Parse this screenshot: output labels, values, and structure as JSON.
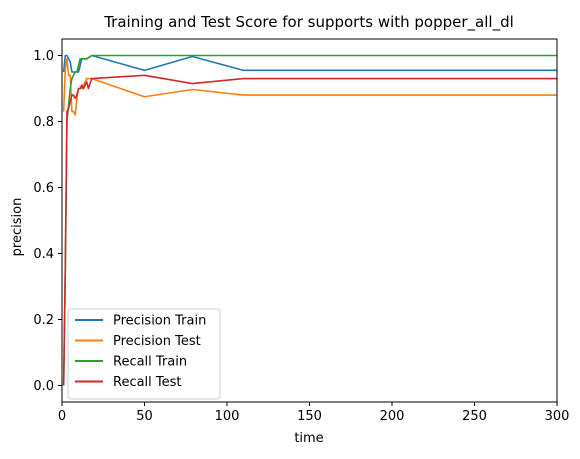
{
  "chart_data": {
    "type": "line",
    "title": "Training and Test Score for supports with popper_all_dl",
    "xlabel": "time",
    "ylabel": "precision",
    "xlim": [
      0,
      300
    ],
    "ylim": [
      -0.05,
      1.05
    ],
    "xticks": [
      0,
      50,
      100,
      150,
      200,
      250,
      300
    ],
    "yticks": [
      0.0,
      0.2,
      0.4,
      0.6,
      0.8,
      1.0
    ],
    "xtick_labels": [
      "0",
      "50",
      "100",
      "150",
      "200",
      "250",
      "300"
    ],
    "ytick_labels": [
      "0.0",
      "0.2",
      "0.4",
      "0.6",
      "0.8",
      "1.0"
    ],
    "grid": false,
    "legend_position": "lower-left",
    "series": [
      {
        "name": "Precision Train",
        "color": "#1f77b4",
        "x": [
          1,
          2,
          3,
          4,
          5,
          6,
          8,
          10,
          12,
          15,
          18,
          50,
          79,
          110,
          300
        ],
        "y": [
          0.95,
          1.0,
          1.0,
          0.99,
          0.98,
          0.95,
          0.95,
          0.95,
          0.99,
          0.99,
          1.0,
          0.955,
          0.997,
          0.955,
          0.955
        ]
      },
      {
        "name": "Precision Test",
        "color": "#ff7f0e",
        "x": [
          1,
          2,
          3,
          4,
          5,
          6,
          7,
          8,
          9,
          10,
          12,
          15,
          18,
          50,
          79,
          110,
          300
        ],
        "y": [
          0.83,
          0.96,
          0.99,
          0.94,
          0.94,
          0.83,
          0.83,
          0.82,
          0.87,
          0.9,
          0.9,
          0.93,
          0.93,
          0.875,
          0.897,
          0.88,
          0.88
        ]
      },
      {
        "name": "Recall Train",
        "color": "#2ca02c",
        "x": [
          1,
          2,
          3,
          4,
          5,
          6,
          7,
          8,
          9,
          10,
          11,
          12,
          15,
          18,
          50,
          300
        ],
        "y": [
          0.0,
          0.35,
          0.8,
          0.85,
          0.9,
          0.93,
          0.94,
          0.95,
          0.95,
          0.97,
          0.99,
          0.99,
          0.99,
          1.0,
          1.0,
          1.0
        ]
      },
      {
        "name": "Recall Test",
        "color": "#d62728",
        "x": [
          1,
          2,
          3,
          4,
          5,
          6,
          7,
          8,
          9,
          10,
          11,
          12,
          13,
          15,
          16,
          18,
          50,
          79,
          110,
          300
        ],
        "y": [
          0.0,
          0.36,
          0.83,
          0.84,
          0.86,
          0.88,
          0.88,
          0.87,
          0.88,
          0.9,
          0.9,
          0.91,
          0.9,
          0.92,
          0.9,
          0.93,
          0.94,
          0.915,
          0.93,
          0.93
        ]
      }
    ]
  }
}
